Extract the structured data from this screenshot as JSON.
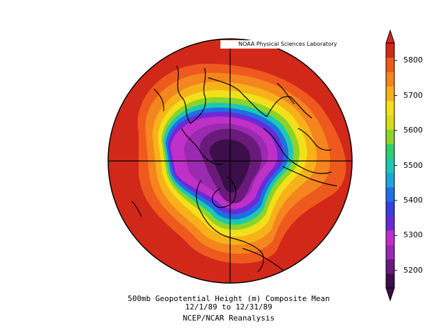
{
  "credit": "NOAA Physical Sciences Laboratory",
  "caption": {
    "line1": "500mb Geopotential Height (m) Composite Mean",
    "line2": "12/1/89  to 12/31/89",
    "line3": "NCEP/NCAR Reanalysis"
  },
  "colorbar": {
    "ticks": [
      "5800",
      "5700",
      "5600",
      "5500",
      "5400",
      "5300",
      "5200"
    ],
    "min": 5150,
    "max": 5850,
    "colors": [
      "#3b0f4a",
      "#6a1a7a",
      "#9a2ab0",
      "#c030c8",
      "#6a2bd6",
      "#3a3ee0",
      "#1e6fe6",
      "#1aa8d8",
      "#1ec8b0",
      "#2ed070",
      "#8bd42a",
      "#d8dc18",
      "#f2e01a",
      "#f7b21a",
      "#f5851e",
      "#ee5a1e",
      "#d2281a"
    ]
  },
  "map": {
    "projection": "north-polar-stereographic",
    "field": "500mb geopotential height"
  }
}
